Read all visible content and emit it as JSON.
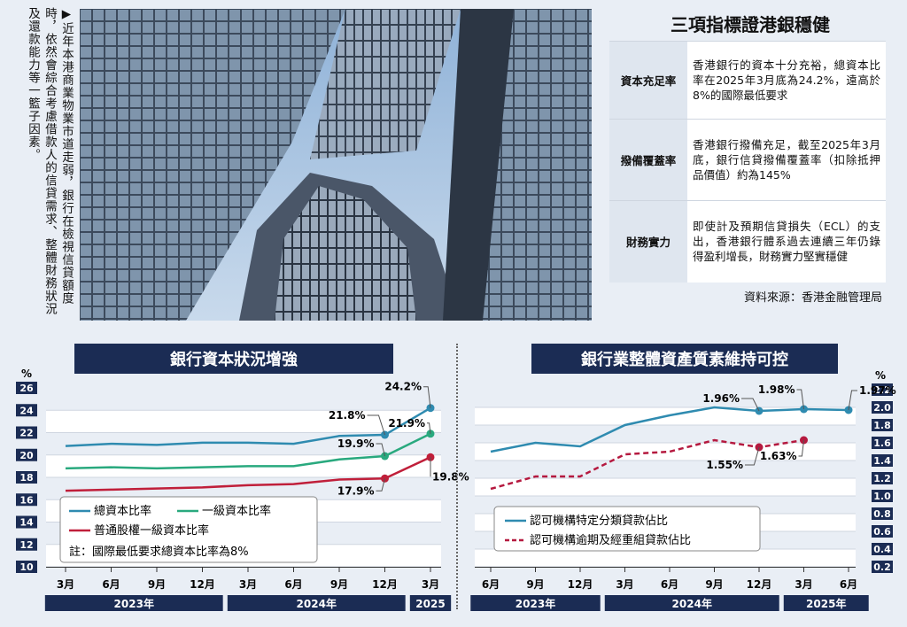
{
  "caption_text": "▶近年本港商業物業市道走弱，銀行在檢視信貸額度時，依然會綜合考慮借款人的信貸需求、整體財務狀況及還款能力等一籃子因素。",
  "infobox": {
    "title": "三項指標證港銀穩健",
    "rows": [
      {
        "label": "資本充足率",
        "text": "香港銀行的資本十分充裕，總資本比率在2025年3月底為24.2%，遠高於8%的國際最低要求"
      },
      {
        "label": "撥備覆蓋率",
        "text": "香港銀行撥備充足，截至2025年3月底，銀行信貸撥備覆蓋率（扣除抵押品價值）約為145%"
      },
      {
        "label": "財務實力",
        "text": "即使計及預期信貸損失（ECL）的支出，香港銀行體系過去連續三年仍錄得盈利增長，財務實力堅實穩健"
      }
    ],
    "source": "資料來源：香港金融管理局"
  },
  "colors": {
    "navy": "#1b2c54",
    "blue": "#2f8bb0",
    "green": "#29a97e",
    "red": "#c01f3a",
    "dashed_red": "#b5193f"
  },
  "chart_data": [
    {
      "type": "line",
      "title": "銀行資本狀況增強",
      "ylabel": "%",
      "ylim": [
        10,
        26
      ],
      "yticks": [
        10,
        12,
        14,
        16,
        18,
        20,
        22,
        24,
        26
      ],
      "categories": [
        "3月",
        "6月",
        "9月",
        "12月",
        "3月",
        "6月",
        "9月",
        "12月",
        "3月"
      ],
      "year_bands": [
        {
          "label": "2023年",
          "span": 4
        },
        {
          "label": "2024年",
          "span": 4
        },
        {
          "label": "2025",
          "span": 1
        }
      ],
      "series": [
        {
          "name": "總資本比率",
          "color": "#2f8bb0",
          "values": [
            20.8,
            21.0,
            20.9,
            21.1,
            21.1,
            21.0,
            21.7,
            21.8,
            24.2
          ]
        },
        {
          "name": "一級資本比率",
          "color": "#29a97e",
          "values": [
            18.8,
            18.9,
            18.8,
            18.9,
            19.0,
            19.0,
            19.6,
            19.9,
            21.9
          ]
        },
        {
          "name": "普通股權一級資本比率",
          "color": "#c01f3a",
          "values": [
            16.8,
            16.9,
            17.0,
            17.1,
            17.3,
            17.4,
            17.8,
            17.9,
            19.8
          ]
        }
      ],
      "annotations": [
        {
          "series": 0,
          "index": 7,
          "text": "21.8%"
        },
        {
          "series": 0,
          "index": 8,
          "text": "24.2%"
        },
        {
          "series": 1,
          "index": 7,
          "text": "19.9%"
        },
        {
          "series": 1,
          "index": 8,
          "text": "21.9%"
        },
        {
          "series": 2,
          "index": 7,
          "text": "17.9%"
        },
        {
          "series": 2,
          "index": 8,
          "text": "19.8%"
        }
      ],
      "note": "註：國際最低要求總資本比率為8%"
    },
    {
      "type": "line",
      "title": "銀行業整體資產質素維持可控",
      "ylabel": "%",
      "ylim": [
        0.2,
        2.2
      ],
      "yticks": [
        0.2,
        0.4,
        0.6,
        0.8,
        1.0,
        1.2,
        1.4,
        1.6,
        1.8,
        2.0,
        2.2
      ],
      "categories": [
        "6月",
        "9月",
        "12月",
        "3月",
        "6月",
        "9月",
        "12月",
        "3月",
        "6月"
      ],
      "year_bands": [
        {
          "label": "2023年",
          "span": 3
        },
        {
          "label": "2024年",
          "span": 4
        },
        {
          "label": "2025年",
          "span": 2
        }
      ],
      "series": [
        {
          "name": "認可機構特定分類貸款佔比",
          "color": "#2f8bb0",
          "dashed": false,
          "values": [
            1.5,
            1.6,
            1.56,
            1.8,
            1.91,
            2.0,
            1.96,
            1.98,
            1.97
          ]
        },
        {
          "name": "認可機構逾期及經重組貸款佔比",
          "color": "#b5193f",
          "dashed": true,
          "values": [
            1.08,
            1.22,
            1.22,
            1.47,
            1.5,
            1.63,
            1.55,
            1.63,
            null
          ]
        }
      ],
      "annotations": [
        {
          "series": 0,
          "index": 6,
          "text": "1.96%"
        },
        {
          "series": 0,
          "index": 7,
          "text": "1.98%"
        },
        {
          "series": 0,
          "index": 8,
          "text": "1.97%"
        },
        {
          "series": 1,
          "index": 6,
          "text": "1.55%"
        },
        {
          "series": 1,
          "index": 7,
          "text": "1.63%"
        }
      ]
    }
  ]
}
